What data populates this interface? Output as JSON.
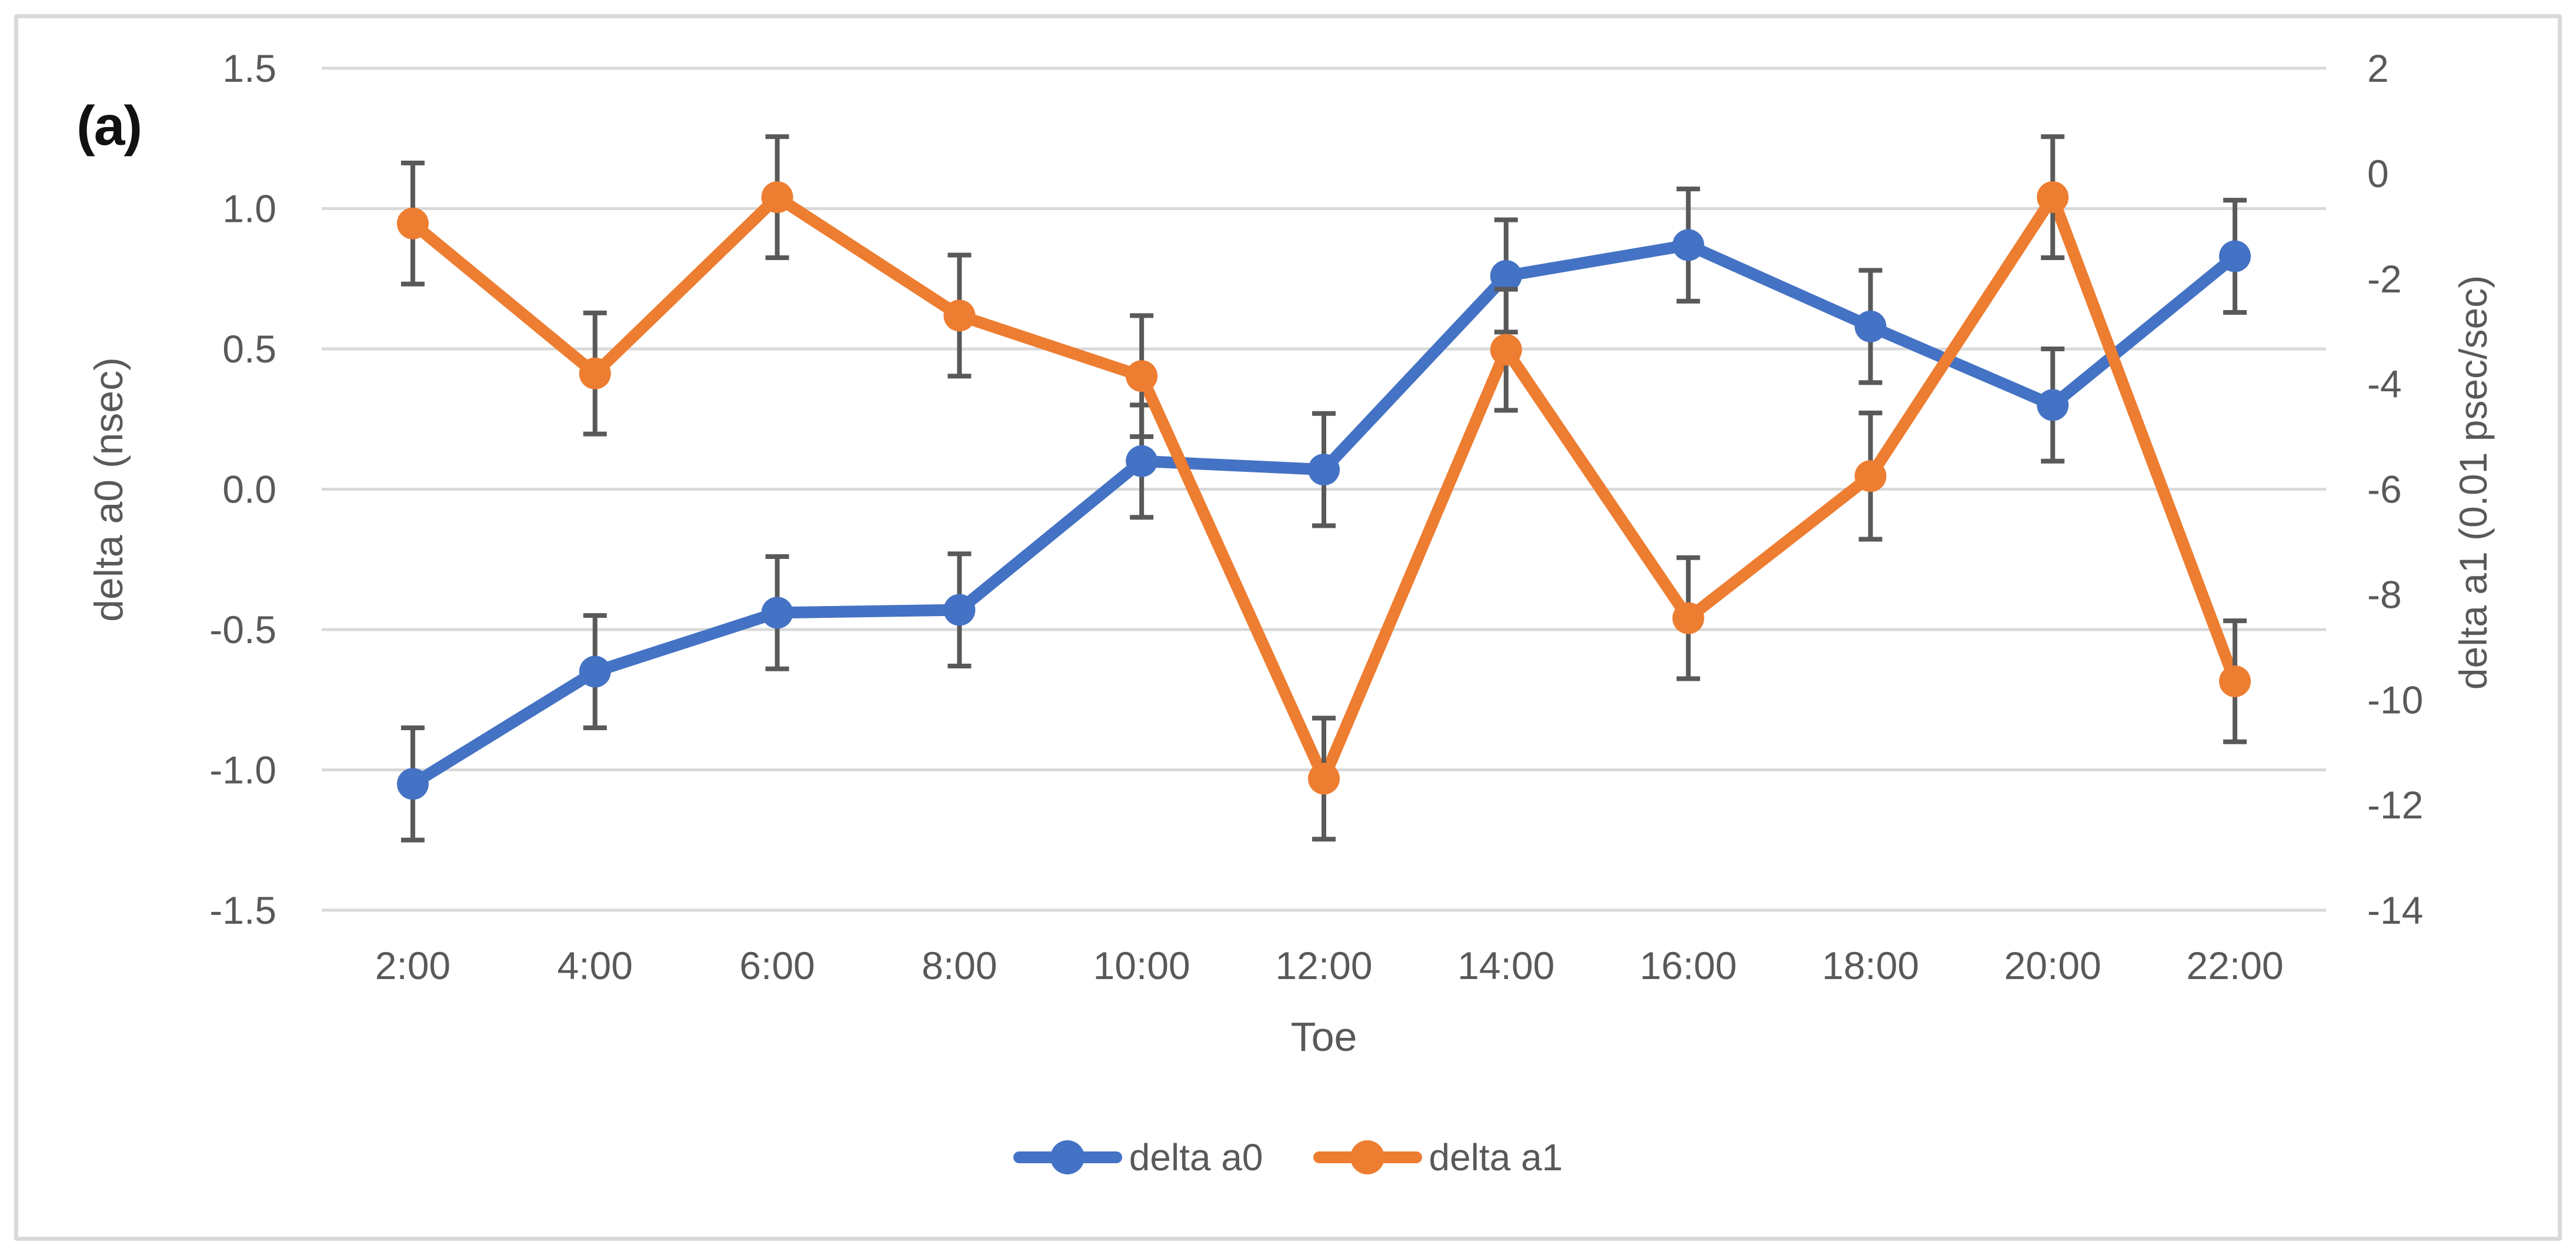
{
  "panel_label": "(a)",
  "styles": {
    "background": "#ffffff",
    "frame_border_color": "#d9d9d9",
    "grid_color": "#d9d9d9",
    "error_bar_color": "#595959",
    "tick_text_color": "#595959",
    "axis_title_color": "#595959",
    "panel_label_color": "#111111"
  },
  "chart_data": {
    "type": "line",
    "panel": "(a)",
    "categories": [
      "2:00",
      "4:00",
      "6:00",
      "8:00",
      "10:00",
      "12:00",
      "14:00",
      "16:00",
      "18:00",
      "20:00",
      "22:00"
    ],
    "x_axis": {
      "title": "Toe"
    },
    "left_axis": {
      "title": "delta a0 (nsec)",
      "min": -1.5,
      "max": 1.5,
      "step": 0.5,
      "tick_labels": [
        "1.5",
        "1.0",
        "0.5",
        "0.0",
        "-0.5",
        "-1.0",
        "-1.5"
      ]
    },
    "right_axis": {
      "title": "delta a1 (0.01 psec/sec)",
      "min": -14,
      "max": 2,
      "step": 2,
      "tick_labels": [
        "2",
        "0",
        "-2",
        "-4",
        "-6",
        "-8",
        "-10",
        "-12",
        "-14"
      ]
    },
    "grid": true,
    "legend_position": "bottom",
    "series": [
      {
        "name": "delta a0",
        "axis": "left",
        "color": "#4472c4",
        "marker": "circle",
        "values": [
          -1.05,
          -0.65,
          -0.44,
          -0.43,
          0.1,
          0.07,
          0.76,
          0.87,
          0.58,
          0.3,
          0.83
        ],
        "errors": [
          0.2,
          0.2,
          0.2,
          0.2,
          0.2,
          0.2,
          0.2,
          0.2,
          0.2,
          0.2,
          0.2
        ]
      },
      {
        "name": "delta a1",
        "axis": "right",
        "color": "#ed7d31",
        "marker": "circle",
        "values": [
          -0.95,
          -3.8,
          -0.45,
          -2.7,
          -3.85,
          -11.5,
          -3.35,
          -8.45,
          -5.75,
          -0.45,
          -9.65
        ],
        "errors": [
          1.15,
          1.15,
          1.15,
          1.15,
          1.15,
          1.15,
          1.15,
          1.15,
          1.2,
          1.15,
          1.15
        ]
      }
    ]
  }
}
